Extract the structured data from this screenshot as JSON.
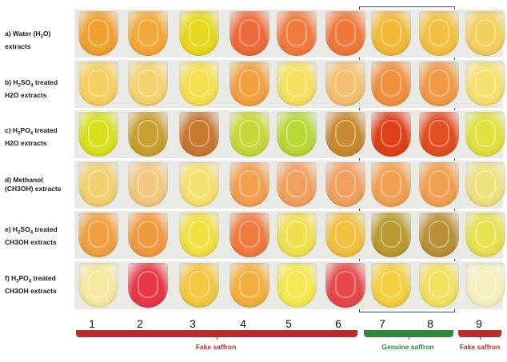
{
  "row_labels": [
    {
      "id": "a",
      "line1_pre": "a) Water (H",
      "line1_sub": "2",
      "line1_post": "O)",
      "line2": "extracts"
    },
    {
      "id": "b",
      "line1_pre": "b) H",
      "line1_sub": "2",
      "line1_mid": "SO",
      "line1_sub2": "4",
      "line1_post": " treated",
      "line2": "H2O  extracts"
    },
    {
      "id": "c",
      "line1_pre": "c) H",
      "line1_sub": "3",
      "line1_mid": "PO",
      "line1_sub2": "4",
      "line1_post": " treated",
      "line2": "H2O  extracts"
    },
    {
      "id": "d",
      "line1_pre": "d) Methanol",
      "line2": "(CH3OH) extracts"
    },
    {
      "id": "e",
      "line1_pre": "e) H",
      "line1_sub": "2",
      "line1_mid": "SO",
      "line1_sub2": "4",
      "line1_post": " treated",
      "line2": "CH3OH extracts"
    },
    {
      "id": "f",
      "line1_pre": "f) H",
      "line1_sub": "3",
      "line1_mid": "PO",
      "line1_sub2": "4",
      "line1_post": " treated",
      "line2": "CH3OH extracts"
    }
  ],
  "columns": [
    "1",
    "2",
    "3",
    "4",
    "5",
    "6",
    "7",
    "8",
    "9"
  ],
  "groups": {
    "fake1": {
      "label": "Fake saffron",
      "color": "#c0282a"
    },
    "genuine": {
      "label": "Genuine saffron",
      "color": "#2b8a3a"
    },
    "fake2": {
      "label": "Fake saffron",
      "color": "#c0282a"
    }
  },
  "box_color": "#3b4a9a",
  "tube_colors": [
    [
      "#f0a030",
      "#f2a838",
      "#e6d820",
      "#ee6a3a",
      "#f07a40",
      "#f0783a",
      "#f2b838",
      "#f2c040",
      "#f2d060"
    ],
    [
      "#f5d060",
      "#f5d270",
      "#f5e050",
      "#f2a040",
      "#f5e060",
      "#f2c070",
      "#f09040",
      "#f09a48",
      "#f5e070"
    ],
    [
      "#d8e020",
      "#c8a030",
      "#c87830",
      "#c8d838",
      "#b8d838",
      "#c88a30",
      "#e04018",
      "#e05020",
      "#e0e040"
    ],
    [
      "#f0d070",
      "#f2c880",
      "#f5e070",
      "#f2a050",
      "#f2a060",
      "#f0a060",
      "#f0a050",
      "#f0a050",
      "#f0e080"
    ],
    [
      "#f0a040",
      "#f09a40",
      "#f0e040",
      "#f07a40",
      "#f0e050",
      "#f0c040",
      "#b89a30",
      "#b89038",
      "#e8e050"
    ],
    [
      "#f5e8a0",
      "#e83848",
      "#f2c840",
      "#f2b040",
      "#f5e850",
      "#e84848",
      "#f2d040",
      "#f2e060",
      "#f5f0c0"
    ]
  ]
}
